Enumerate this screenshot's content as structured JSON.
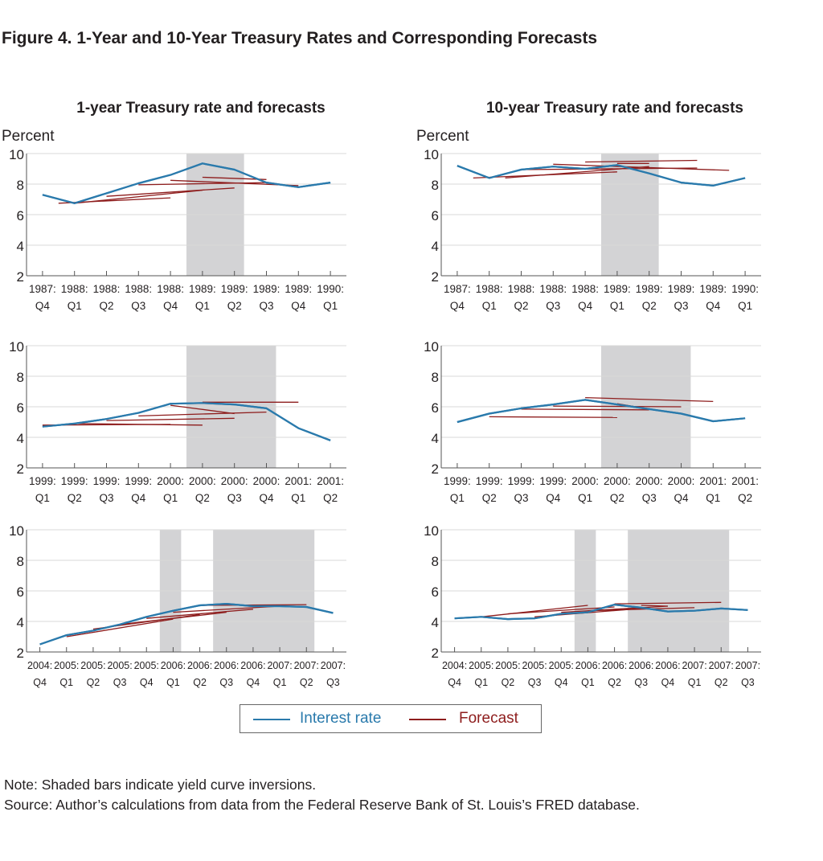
{
  "figure_title": "Figure 4. 1-Year and 10-Year Treasury Rates and Corresponding Forecasts",
  "note": "Note: Shaded bars indicate yield curve inversions.",
  "source": "Source: Author’s calculations from data from the Federal Reserve Bank of St. Louis’s FRED database.",
  "colors": {
    "interest": "#2a7aac",
    "forecast": "#8e1d1d",
    "shade": "#d3d3d5",
    "grid": "#d8d8d8"
  },
  "legend": {
    "interest_label": "Interest rate",
    "forecast_label": "Forecast"
  },
  "chart_data": [
    {
      "type": "line",
      "title": "1-year Treasury rate and forecasts",
      "ylabel": "Percent",
      "ylim": [
        2,
        10
      ],
      "yticks": [
        2,
        4,
        6,
        8,
        10
      ],
      "x_labels": [
        [
          "1987:",
          "Q4"
        ],
        [
          "1988:",
          "Q1"
        ],
        [
          "1988:",
          "Q2"
        ],
        [
          "1988:",
          "Q3"
        ],
        [
          "1988:",
          "Q4"
        ],
        [
          "1989:",
          "Q1"
        ],
        [
          "1989:",
          "Q2"
        ],
        [
          "1989:",
          "Q3"
        ],
        [
          "1989:",
          "Q4"
        ],
        [
          "1990:",
          "Q1"
        ]
      ],
      "shaded": [
        [
          4.5,
          6.3
        ]
      ],
      "series": [
        {
          "values": [
            7.3,
            6.75,
            7.4,
            8.05,
            8.6,
            9.35,
            8.95,
            8.1,
            7.8,
            8.1
          ]
        },
        {
          "forecast": true,
          "x": [
            0.5,
            4.0
          ],
          "values": [
            6.75,
            7.1
          ]
        },
        {
          "forecast": true,
          "x": [
            1.0,
            5.0
          ],
          "values": [
            6.75,
            7.6
          ]
        },
        {
          "forecast": true,
          "x": [
            2.0,
            6.0
          ],
          "values": [
            7.2,
            7.75
          ]
        },
        {
          "forecast": true,
          "x": [
            3.0,
            7.0
          ],
          "values": [
            7.95,
            8.1
          ]
        },
        {
          "forecast": true,
          "x": [
            4.0,
            8.0
          ],
          "values": [
            8.25,
            7.9
          ]
        },
        {
          "forecast": true,
          "x": [
            5.0,
            7.0
          ],
          "values": [
            8.45,
            8.3
          ]
        }
      ]
    },
    {
      "type": "line",
      "title": "10-year Treasury rate and forecasts",
      "ylabel": "Percent",
      "ylim": [
        2,
        10
      ],
      "yticks": [
        2,
        4,
        6,
        8,
        10
      ],
      "x_labels": [
        [
          "1987:",
          "Q4"
        ],
        [
          "1988:",
          "Q1"
        ],
        [
          "1988:",
          "Q2"
        ],
        [
          "1988:",
          "Q3"
        ],
        [
          "1988:",
          "Q4"
        ],
        [
          "1989:",
          "Q1"
        ],
        [
          "1989:",
          "Q2"
        ],
        [
          "1989:",
          "Q3"
        ],
        [
          "1989:",
          "Q4"
        ],
        [
          "1990:",
          "Q1"
        ]
      ],
      "shaded": [
        [
          4.5,
          6.3
        ]
      ],
      "series": [
        {
          "values": [
            9.2,
            8.4,
            8.95,
            9.15,
            9.0,
            9.25,
            8.7,
            8.1,
            7.9,
            8.4
          ]
        },
        {
          "forecast": true,
          "x": [
            0.5,
            5.0
          ],
          "values": [
            8.4,
            8.8
          ]
        },
        {
          "forecast": true,
          "x": [
            1.5,
            6.0
          ],
          "values": [
            8.4,
            9.15
          ]
        },
        {
          "forecast": true,
          "x": [
            2.0,
            7.5
          ],
          "values": [
            8.95,
            9.05
          ]
        },
        {
          "forecast": true,
          "x": [
            3.0,
            8.5
          ],
          "values": [
            9.3,
            8.9
          ]
        },
        {
          "forecast": true,
          "x": [
            4.0,
            7.5
          ],
          "values": [
            9.45,
            9.55
          ]
        },
        {
          "forecast": true,
          "x": [
            5.0,
            6.0
          ],
          "values": [
            9.35,
            9.35
          ]
        }
      ]
    },
    {
      "type": "line",
      "title": "",
      "ylim": [
        2,
        10
      ],
      "yticks": [
        2,
        4,
        6,
        8,
        10
      ],
      "x_labels": [
        [
          "1999:",
          "Q1"
        ],
        [
          "1999:",
          "Q2"
        ],
        [
          "1999:",
          "Q3"
        ],
        [
          "1999:",
          "Q4"
        ],
        [
          "2000:",
          "Q1"
        ],
        [
          "2000:",
          "Q2"
        ],
        [
          "2000:",
          "Q3"
        ],
        [
          "2000:",
          "Q4"
        ],
        [
          "2001:",
          "Q1"
        ],
        [
          "2001:",
          "Q2"
        ]
      ],
      "shaded": [
        [
          4.5,
          7.3
        ]
      ],
      "series": [
        {
          "values": [
            4.7,
            4.9,
            5.2,
            5.6,
            6.2,
            6.25,
            6.15,
            5.9,
            4.6,
            3.8
          ]
        },
        {
          "forecast": true,
          "x": [
            0.0,
            4.0
          ],
          "values": [
            4.8,
            4.85
          ]
        },
        {
          "forecast": true,
          "x": [
            1.0,
            5.0
          ],
          "values": [
            4.9,
            4.8
          ]
        },
        {
          "forecast": true,
          "x": [
            2.0,
            6.0
          ],
          "values": [
            5.1,
            5.25
          ]
        },
        {
          "forecast": true,
          "x": [
            3.0,
            7.0
          ],
          "values": [
            5.4,
            5.65
          ]
        },
        {
          "forecast": true,
          "x": [
            4.0,
            6.0
          ],
          "values": [
            6.1,
            5.55
          ]
        },
        {
          "forecast": true,
          "x": [
            5.0,
            8.0
          ],
          "values": [
            6.3,
            6.3
          ]
        }
      ]
    },
    {
      "type": "line",
      "title": "",
      "ylim": [
        2,
        10
      ],
      "yticks": [
        2,
        4,
        6,
        8,
        10
      ],
      "x_labels": [
        [
          "1999:",
          "Q1"
        ],
        [
          "1999:",
          "Q2"
        ],
        [
          "1999:",
          "Q3"
        ],
        [
          "1999:",
          "Q4"
        ],
        [
          "2000:",
          "Q1"
        ],
        [
          "2000:",
          "Q2"
        ],
        [
          "2000:",
          "Q3"
        ],
        [
          "2000:",
          "Q4"
        ],
        [
          "2001:",
          "Q1"
        ],
        [
          "2001:",
          "Q2"
        ]
      ],
      "shaded": [
        [
          4.5,
          7.3
        ]
      ],
      "series": [
        {
          "values": [
            5.0,
            5.55,
            5.9,
            6.15,
            6.45,
            6.15,
            5.85,
            5.55,
            5.05,
            5.25
          ]
        },
        {
          "forecast": true,
          "x": [
            1.0,
            5.0
          ],
          "values": [
            5.35,
            5.3
          ]
        },
        {
          "forecast": true,
          "x": [
            2.0,
            6.0
          ],
          "values": [
            5.85,
            5.8
          ]
        },
        {
          "forecast": true,
          "x": [
            3.0,
            7.0
          ],
          "values": [
            6.05,
            6.0
          ]
        },
        {
          "forecast": true,
          "x": [
            4.0,
            8.0
          ],
          "values": [
            6.6,
            6.35
          ]
        },
        {
          "forecast": true,
          "x": [
            5.0,
            6.0
          ],
          "values": [
            6.2,
            5.85
          ]
        }
      ]
    },
    {
      "type": "line",
      "title": "",
      "ylim": [
        2,
        10
      ],
      "yticks": [
        2,
        4,
        6,
        8,
        10
      ],
      "x_labels": [
        [
          "2004:",
          "Q4"
        ],
        [
          "2005:",
          "Q1"
        ],
        [
          "2005:",
          "Q2"
        ],
        [
          "2005:",
          "Q3"
        ],
        [
          "2005:",
          "Q4"
        ],
        [
          "2006:",
          "Q1"
        ],
        [
          "2006:",
          "Q2"
        ],
        [
          "2006:",
          "Q3"
        ],
        [
          "2006:",
          "Q4"
        ],
        [
          "2007:",
          "Q1"
        ],
        [
          "2007:",
          "Q2"
        ],
        [
          "2007:",
          "Q3"
        ]
      ],
      "shaded": [
        [
          4.5,
          5.3
        ],
        [
          6.5,
          10.3
        ]
      ],
      "series": [
        {
          "values": [
            2.5,
            3.1,
            3.4,
            3.8,
            4.3,
            4.7,
            5.05,
            5.15,
            5.0,
            5.0,
            4.95,
            4.55
          ]
        },
        {
          "forecast": true,
          "x": [
            1.0,
            5.0
          ],
          "values": [
            3.0,
            4.15
          ]
        },
        {
          "forecast": true,
          "x": [
            2.0,
            6.0
          ],
          "values": [
            3.5,
            4.45
          ]
        },
        {
          "forecast": true,
          "x": [
            3.0,
            7.0
          ],
          "values": [
            3.8,
            4.6
          ]
        },
        {
          "forecast": true,
          "x": [
            4.0,
            8.0
          ],
          "values": [
            4.2,
            4.8
          ]
        },
        {
          "forecast": true,
          "x": [
            5.0,
            9.0
          ],
          "values": [
            4.6,
            5.0
          ]
        },
        {
          "forecast": true,
          "x": [
            6.0,
            10.0
          ],
          "values": [
            5.05,
            5.1
          ]
        },
        {
          "forecast": true,
          "x": [
            7.0,
            9.0
          ],
          "values": [
            5.1,
            5.0
          ]
        }
      ]
    },
    {
      "type": "line",
      "title": "",
      "ylim": [
        2,
        10
      ],
      "yticks": [
        2,
        4,
        6,
        8,
        10
      ],
      "x_labels": [
        [
          "2004:",
          "Q4"
        ],
        [
          "2005:",
          "Q1"
        ],
        [
          "2005:",
          "Q2"
        ],
        [
          "2005:",
          "Q3"
        ],
        [
          "2005:",
          "Q4"
        ],
        [
          "2006:",
          "Q1"
        ],
        [
          "2006:",
          "Q2"
        ],
        [
          "2006:",
          "Q3"
        ],
        [
          "2006:",
          "Q4"
        ],
        [
          "2007:",
          "Q1"
        ],
        [
          "2007:",
          "Q2"
        ],
        [
          "2007:",
          "Q3"
        ]
      ],
      "shaded": [
        [
          4.5,
          5.3
        ],
        [
          6.5,
          10.3
        ]
      ],
      "series": [
        {
          "values": [
            4.2,
            4.3,
            4.15,
            4.2,
            4.5,
            4.6,
            5.1,
            4.9,
            4.65,
            4.7,
            4.85,
            4.75
          ]
        },
        {
          "forecast": true,
          "x": [
            1.0,
            5.0
          ],
          "values": [
            4.3,
            5.05
          ]
        },
        {
          "forecast": true,
          "x": [
            2.0,
            6.0
          ],
          "values": [
            4.5,
            4.95
          ]
        },
        {
          "forecast": true,
          "x": [
            3.0,
            7.0
          ],
          "values": [
            4.3,
            4.85
          ]
        },
        {
          "forecast": true,
          "x": [
            4.0,
            8.0
          ],
          "values": [
            4.6,
            5.0
          ]
        },
        {
          "forecast": true,
          "x": [
            5.0,
            9.0
          ],
          "values": [
            4.7,
            4.9
          ]
        },
        {
          "forecast": true,
          "x": [
            6.0,
            10.0
          ],
          "values": [
            5.15,
            5.25
          ]
        },
        {
          "forecast": true,
          "x": [
            7.0,
            8.0
          ],
          "values": [
            5.05,
            5.0
          ]
        }
      ]
    }
  ]
}
